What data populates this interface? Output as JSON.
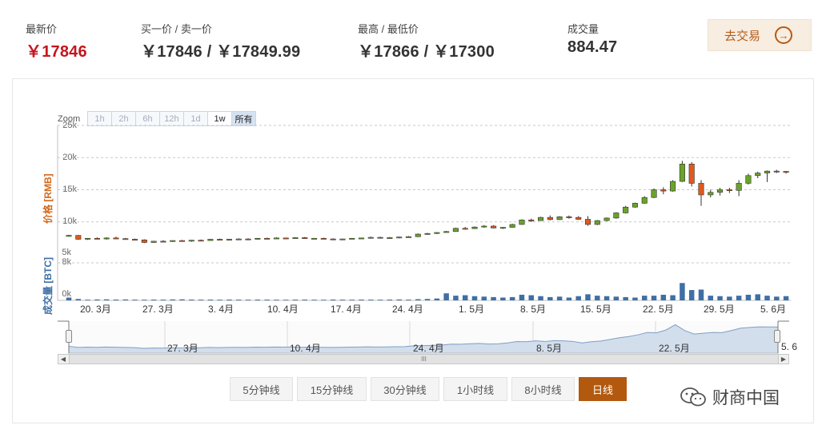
{
  "stats": {
    "latest": {
      "label": "最新价",
      "value": "￥17846"
    },
    "bid_ask": {
      "label": "买一价 / 卖一价",
      "value": "￥17846 / ￥17849.99"
    },
    "high_low": {
      "label": "最高 / 最低价",
      "value": "￥17866 / ￥17300"
    },
    "volume": {
      "label": "成交量",
      "value": "884.47"
    }
  },
  "trade_button": {
    "label": "去交易",
    "icon": "arrow-right-circle-icon"
  },
  "zoom": {
    "label": "Zoom",
    "buttons": [
      {
        "label": "1h",
        "state": "disabled"
      },
      {
        "label": "2h",
        "state": "disabled"
      },
      {
        "label": "6h",
        "state": "disabled"
      },
      {
        "label": "12h",
        "state": "disabled"
      },
      {
        "label": "1d",
        "state": "disabled"
      },
      {
        "label": "1w",
        "state": "enabled"
      },
      {
        "label": "所有",
        "state": "active"
      }
    ]
  },
  "chart_data": {
    "type": "candlestick",
    "price_axis": {
      "title": "价格 [RMB]",
      "ticks": [
        "25k",
        "20k",
        "15k",
        "10k",
        "5k"
      ],
      "ylim": [
        5000,
        25000
      ]
    },
    "volume_axis": {
      "title": "成交量 [BTC]",
      "ticks": [
        "8k",
        "0k"
      ],
      "ylim": [
        0,
        8000
      ]
    },
    "x_labels": [
      "20. 3月",
      "27. 3月",
      "3. 4月",
      "10. 4月",
      "17. 4月",
      "24. 4月",
      "1. 5月",
      "8. 5月",
      "15. 5月",
      "22. 5月",
      "29. 5月",
      "5. 6月"
    ],
    "navigator_labels": [
      "27. 3月",
      "10. 4月",
      "24. 4月",
      "8. 5月",
      "22. 5月",
      "5. 6"
    ],
    "colors": {
      "up": "#6aa329",
      "down": "#e05a1c",
      "volume": "#3f6fa5",
      "navigator": "#d2deec"
    },
    "candles": [
      [
        7800,
        8000,
        7700,
        7900
      ],
      [
        7900,
        7950,
        7200,
        7300
      ],
      [
        7300,
        7500,
        7200,
        7450
      ],
      [
        7450,
        7600,
        7300,
        7350
      ],
      [
        7350,
        7600,
        7250,
        7500
      ],
      [
        7500,
        7700,
        7300,
        7400
      ],
      [
        7400,
        7500,
        7250,
        7300
      ],
      [
        7300,
        7400,
        7100,
        7200
      ],
      [
        7200,
        7300,
        6700,
        6800
      ],
      [
        6800,
        7050,
        6750,
        7000
      ],
      [
        7000,
        7150,
        6850,
        6950
      ],
      [
        6950,
        7150,
        6900,
        7100
      ],
      [
        7100,
        7200,
        6950,
        7000
      ],
      [
        7000,
        7200,
        6900,
        7150
      ],
      [
        7150,
        7250,
        7000,
        7100
      ],
      [
        7100,
        7350,
        7050,
        7300
      ],
      [
        7300,
        7400,
        7150,
        7200
      ],
      [
        7200,
        7350,
        7100,
        7300
      ],
      [
        7300,
        7450,
        7200,
        7350
      ],
      [
        7350,
        7450,
        7250,
        7300
      ],
      [
        7300,
        7500,
        7250,
        7450
      ],
      [
        7450,
        7550,
        7300,
        7400
      ],
      [
        7400,
        7600,
        7350,
        7500
      ],
      [
        7500,
        7550,
        7350,
        7450
      ],
      [
        7450,
        7600,
        7400,
        7550
      ],
      [
        7550,
        7650,
        7350,
        7400
      ],
      [
        7400,
        7500,
        7300,
        7450
      ],
      [
        7450,
        7550,
        7300,
        7350
      ],
      [
        7350,
        7450,
        7200,
        7300
      ],
      [
        7300,
        7400,
        7200,
        7350
      ],
      [
        7350,
        7500,
        7300,
        7450
      ],
      [
        7450,
        7550,
        7350,
        7500
      ],
      [
        7500,
        7700,
        7400,
        7600
      ],
      [
        7600,
        7700,
        7450,
        7500
      ],
      [
        7500,
        7650,
        7400,
        7550
      ],
      [
        7550,
        7700,
        7450,
        7650
      ],
      [
        7650,
        7800,
        7550,
        7700
      ],
      [
        7700,
        8200,
        7650,
        8100
      ],
      [
        8100,
        8300,
        8000,
        8200
      ],
      [
        8200,
        8400,
        8100,
        8350
      ],
      [
        8350,
        8600,
        8300,
        8500
      ],
      [
        8500,
        9100,
        8450,
        9000
      ],
      [
        9000,
        9200,
        8800,
        8950
      ],
      [
        8950,
        9300,
        8900,
        9200
      ],
      [
        9200,
        9500,
        9100,
        9350
      ],
      [
        9350,
        9500,
        9000,
        9050
      ],
      [
        9050,
        9200,
        8900,
        9150
      ],
      [
        9150,
        9700,
        9100,
        9600
      ],
      [
        9600,
        10400,
        9550,
        10300
      ],
      [
        10300,
        10500,
        10000,
        10200
      ],
      [
        10200,
        10800,
        10150,
        10700
      ],
      [
        10700,
        11000,
        10250,
        10350
      ],
      [
        10350,
        10900,
        10300,
        10800
      ],
      [
        10800,
        11000,
        10500,
        10700
      ],
      [
        10700,
        10900,
        10300,
        10400
      ],
      [
        10400,
        10900,
        9400,
        9600
      ],
      [
        9600,
        10300,
        9500,
        10200
      ],
      [
        10200,
        10700,
        10100,
        10600
      ],
      [
        10600,
        11500,
        10500,
        11400
      ],
      [
        11400,
        12500,
        11300,
        12300
      ],
      [
        12300,
        13000,
        12200,
        12900
      ],
      [
        12900,
        14000,
        12800,
        13800
      ],
      [
        13800,
        15200,
        13700,
        15000
      ],
      [
        15000,
        15400,
        14300,
        14800
      ],
      [
        14800,
        16500,
        14700,
        16300
      ],
      [
        16300,
        19500,
        16200,
        19000
      ],
      [
        19000,
        19300,
        15500,
        16000
      ],
      [
        16000,
        16500,
        12500,
        14200
      ],
      [
        14200,
        15000,
        13800,
        14600
      ],
      [
        14600,
        15300,
        14100,
        15000
      ],
      [
        15000,
        15300,
        14500,
        14900
      ],
      [
        14900,
        16500,
        14000,
        16000
      ],
      [
        16000,
        17500,
        15800,
        17200
      ],
      [
        17200,
        17800,
        16800,
        17600
      ],
      [
        17600,
        18000,
        16200,
        17900
      ],
      [
        17900,
        18100,
        17600,
        17850
      ],
      [
        17850,
        17900,
        17500,
        17846
      ]
    ],
    "volume": [
      600,
      300,
      150,
      200,
      220,
      180,
      200,
      160,
      150,
      170,
      160,
      200,
      220,
      180,
      160,
      170,
      150,
      180,
      160,
      150,
      170,
      160,
      150,
      140,
      160,
      170,
      150,
      140,
      180,
      160,
      150,
      170,
      160,
      150,
      180,
      200,
      160,
      250,
      300,
      400,
      1500,
      1000,
      1100,
      900,
      800,
      700,
      600,
      700,
      1200,
      1100,
      900,
      700,
      800,
      600,
      900,
      1300,
      1000,
      900,
      800,
      700,
      600,
      1000,
      1000,
      1200,
      1100,
      3700,
      2200,
      2300,
      1000,
      900,
      800,
      1000,
      1200,
      1300,
      1000,
      800,
      900
    ]
  },
  "navigator_scroll": {
    "handle_glyph": "III"
  },
  "periods": {
    "items": [
      "5分钟线",
      "15分钟线",
      "30分钟线",
      "1小时线",
      "8小时线",
      "日线"
    ],
    "active_index": 5
  },
  "watermark": {
    "text": "财商中国"
  }
}
